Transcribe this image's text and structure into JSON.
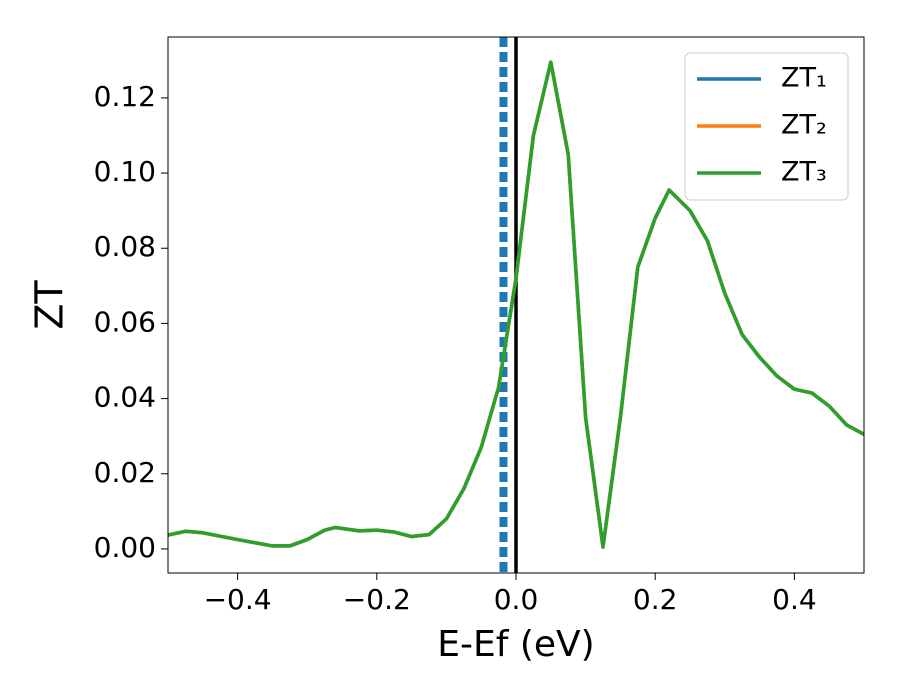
{
  "chart_data": {
    "type": "line",
    "xlabel": "E-Ef (eV)",
    "ylabel": "ZT",
    "x": [
      -0.5,
      -0.475,
      -0.45,
      -0.4,
      -0.35,
      -0.325,
      -0.3,
      -0.275,
      -0.26,
      -0.225,
      -0.2,
      -0.175,
      -0.15,
      -0.125,
      -0.1,
      -0.075,
      -0.05,
      -0.025,
      0.0,
      0.025,
      0.05,
      0.075,
      0.1,
      0.125,
      0.15,
      0.175,
      0.2,
      0.22,
      0.25,
      0.275,
      0.3,
      0.325,
      0.35,
      0.375,
      0.4,
      0.425,
      0.45,
      0.475,
      0.5
    ],
    "series": [
      {
        "name": "ZT₁",
        "color": "#1f77b4",
        "values": [
          0.0037,
          0.0047,
          0.0043,
          0.0025,
          0.0008,
          0.0008,
          0.0025,
          0.005,
          0.0057,
          0.0048,
          0.005,
          0.0045,
          0.0033,
          0.0038,
          0.008,
          0.016,
          0.027,
          0.043,
          0.072,
          0.11,
          0.1295,
          0.105,
          0.035,
          0.0005,
          0.035,
          0.075,
          0.088,
          0.0955,
          0.09,
          0.082,
          0.068,
          0.057,
          0.051,
          0.046,
          0.0425,
          0.0415,
          0.038,
          0.033,
          0.0305
        ]
      },
      {
        "name": "ZT₂",
        "color": "#ff7f0e",
        "values": [
          0.0037,
          0.0047,
          0.0043,
          0.0025,
          0.0008,
          0.0008,
          0.0025,
          0.005,
          0.0057,
          0.0048,
          0.005,
          0.0045,
          0.0033,
          0.0038,
          0.008,
          0.016,
          0.027,
          0.043,
          0.072,
          0.11,
          0.1295,
          0.105,
          0.035,
          0.0005,
          0.035,
          0.075,
          0.088,
          0.0955,
          0.09,
          0.082,
          0.068,
          0.057,
          0.051,
          0.046,
          0.0425,
          0.0415,
          0.038,
          0.033,
          0.0305
        ]
      },
      {
        "name": "ZT₃",
        "color": "#2ca02c",
        "values": [
          0.0037,
          0.0047,
          0.0043,
          0.0025,
          0.0008,
          0.0008,
          0.0025,
          0.005,
          0.0057,
          0.0048,
          0.005,
          0.0045,
          0.0033,
          0.0038,
          0.008,
          0.016,
          0.027,
          0.043,
          0.072,
          0.11,
          0.1295,
          0.105,
          0.035,
          0.0005,
          0.035,
          0.075,
          0.088,
          0.0955,
          0.09,
          0.082,
          0.068,
          0.057,
          0.051,
          0.046,
          0.0425,
          0.0415,
          0.038,
          0.033,
          0.0305
        ]
      }
    ],
    "vlines": [
      {
        "x": -0.018,
        "color": "#1f77b4",
        "style": "dashed"
      },
      {
        "x": 0,
        "color": "#000000",
        "style": "solid"
      }
    ],
    "xlim": [
      -0.5,
      0.5
    ],
    "xticks": [
      {
        "value": -0.4,
        "label": "−0.4"
      },
      {
        "value": -0.2,
        "label": "−0.2"
      },
      {
        "value": 0,
        "label": "0.0"
      },
      {
        "value": 0.2,
        "label": "0.2"
      },
      {
        "value": 0.4,
        "label": "0.4"
      }
    ],
    "ylim": [
      -0.0064,
      0.1362
    ],
    "yticks": [
      {
        "value": 0,
        "label": "0.00"
      },
      {
        "value": 0.02,
        "label": "0.02"
      },
      {
        "value": 0.04,
        "label": "0.04"
      },
      {
        "value": 0.06,
        "label": "0.06"
      },
      {
        "value": 0.08,
        "label": "0.08"
      },
      {
        "value": 0.1,
        "label": "0.10"
      },
      {
        "value": 0.12,
        "label": "0.12"
      }
    ],
    "legend": "upper right",
    "grid": false
  }
}
